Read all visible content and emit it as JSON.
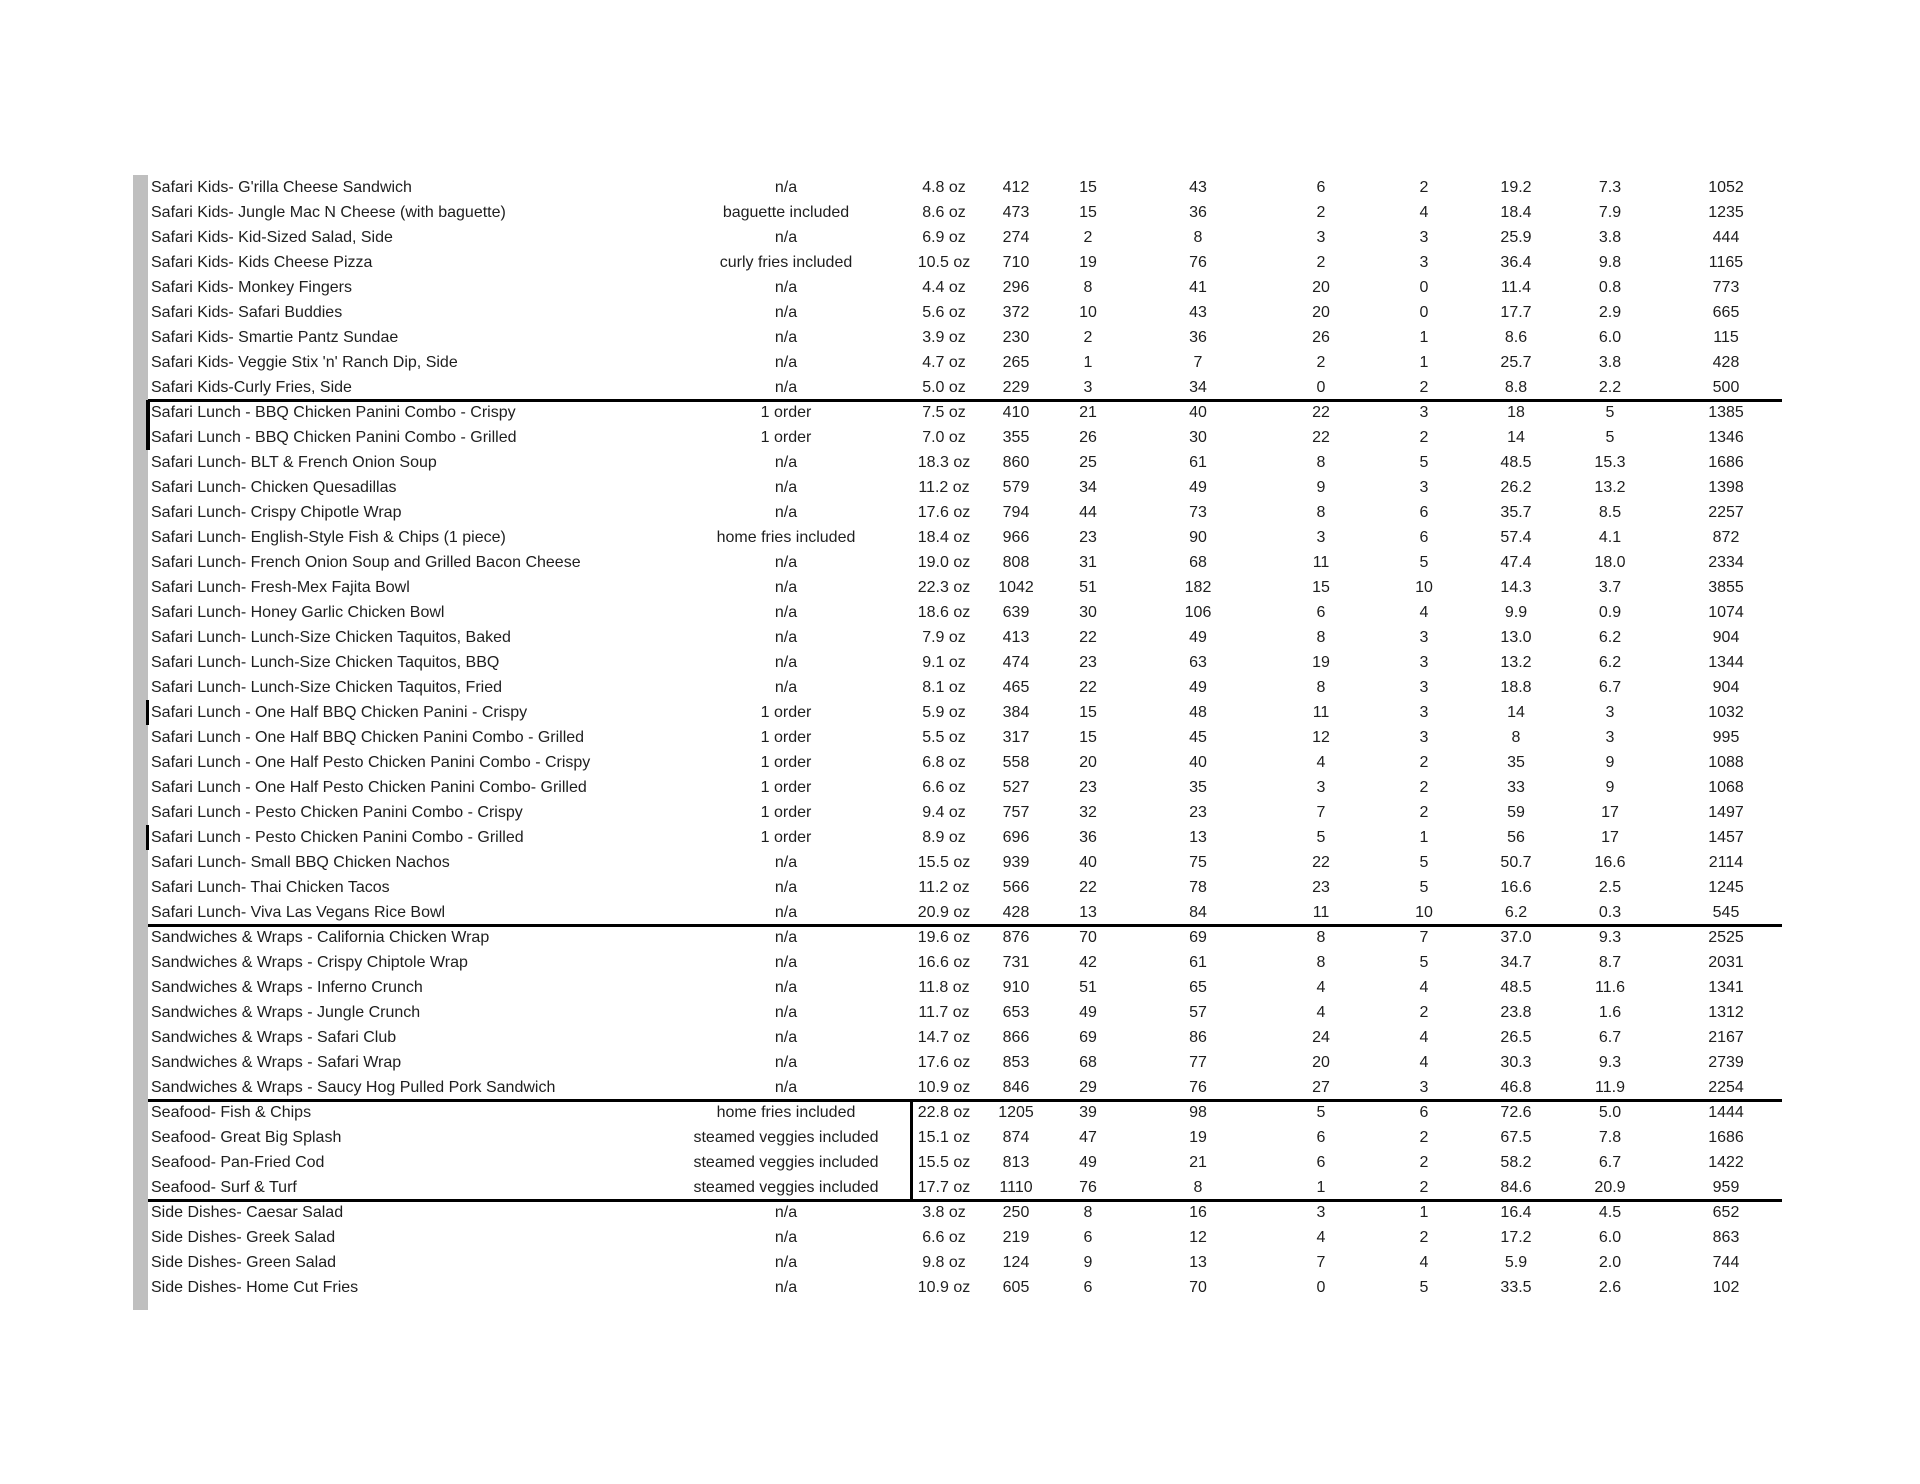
{
  "colors": {
    "background": "#ffffff",
    "text": "#1e1e1e",
    "grid_line": "#000000",
    "row_header_strip": "#bfbfbf"
  },
  "table": {
    "sections": [
      {
        "id": "safari-kids",
        "rows": [
          {
            "name": "Safari Kids- G'rilla Cheese Sandwich",
            "note": "n/a",
            "serving": "4.8 oz",
            "values": [
              "412",
              "15",
              "43",
              "6",
              "2",
              "19.2",
              "7.3",
              "1052"
            ]
          },
          {
            "name": "Safari Kids- Jungle Mac N Cheese (with baguette)",
            "note": "baguette included",
            "serving": "8.6 oz",
            "values": [
              "473",
              "15",
              "36",
              "2",
              "4",
              "18.4",
              "7.9",
              "1235"
            ]
          },
          {
            "name": "Safari Kids- Kid-Sized Salad, Side",
            "note": "n/a",
            "serving": "6.9 oz",
            "values": [
              "274",
              "2",
              "8",
              "3",
              "3",
              "25.9",
              "3.8",
              "444"
            ]
          },
          {
            "name": "Safari Kids- Kids Cheese Pizza",
            "note": "curly fries included",
            "serving": "10.5 oz",
            "values": [
              "710",
              "19",
              "76",
              "2",
              "3",
              "36.4",
              "9.8",
              "1165"
            ]
          },
          {
            "name": "Safari Kids- Monkey Fingers",
            "note": "n/a",
            "serving": "4.4 oz",
            "values": [
              "296",
              "8",
              "41",
              "20",
              "0",
              "11.4",
              "0.8",
              "773"
            ]
          },
          {
            "name": "Safari Kids- Safari Buddies",
            "note": "n/a",
            "serving": "5.6 oz",
            "values": [
              "372",
              "10",
              "43",
              "20",
              "0",
              "17.7",
              "2.9",
              "665"
            ]
          },
          {
            "name": "Safari Kids- Smartie Pantz Sundae",
            "note": "n/a",
            "serving": "3.9 oz",
            "values": [
              "230",
              "2",
              "36",
              "26",
              "1",
              "8.6",
              "6.0",
              "115"
            ]
          },
          {
            "name": "Safari Kids- Veggie Stix 'n' Ranch Dip, Side",
            "note": "n/a",
            "serving": "4.7 oz",
            "values": [
              "265",
              "1",
              "7",
              "2",
              "1",
              "25.7",
              "3.8",
              "428"
            ]
          },
          {
            "name": "Safari Kids-Curly Fries, Side",
            "note": "n/a",
            "serving": "5.0 oz",
            "values": [
              "229",
              "3",
              "34",
              "0",
              "2",
              "8.8",
              "2.2",
              "500"
            ]
          }
        ]
      },
      {
        "id": "safari-lunch",
        "rows": [
          {
            "name": "Safari Lunch - BBQ Chicken Panini Combo - Crispy",
            "note": "1 order",
            "serving": "7.5 oz",
            "values": [
              "410",
              "21",
              "40",
              "22",
              "3",
              "18",
              "5",
              "1385"
            ]
          },
          {
            "name": "Safari Lunch - BBQ Chicken Panini Combo - Grilled",
            "note": "1 order",
            "serving": "7.0 oz",
            "values": [
              "355",
              "26",
              "30",
              "22",
              "2",
              "14",
              "5",
              "1346"
            ]
          },
          {
            "name": "Safari Lunch- BLT & French Onion Soup",
            "note": "n/a",
            "serving": "18.3 oz",
            "values": [
              "860",
              "25",
              "61",
              "8",
              "5",
              "48.5",
              "15.3",
              "1686"
            ]
          },
          {
            "name": "Safari Lunch- Chicken Quesadillas",
            "note": "n/a",
            "serving": "11.2 oz",
            "values": [
              "579",
              "34",
              "49",
              "9",
              "3",
              "26.2",
              "13.2",
              "1398"
            ]
          },
          {
            "name": "Safari Lunch- Crispy Chipotle Wrap",
            "note": "n/a",
            "serving": "17.6 oz",
            "values": [
              "794",
              "44",
              "73",
              "8",
              "6",
              "35.7",
              "8.5",
              "2257"
            ]
          },
          {
            "name": "Safari Lunch- English-Style Fish & Chips (1 piece)",
            "note": "home fries included",
            "serving": "18.4 oz",
            "values": [
              "966",
              "23",
              "90",
              "3",
              "6",
              "57.4",
              "4.1",
              "872"
            ]
          },
          {
            "name": "Safari Lunch- French Onion Soup and Grilled Bacon Cheese",
            "note": "n/a",
            "serving": "19.0 oz",
            "values": [
              "808",
              "31",
              "68",
              "11",
              "5",
              "47.4",
              "18.0",
              "2334"
            ]
          },
          {
            "name": "Safari Lunch- Fresh-Mex Fajita Bowl",
            "note": "n/a",
            "serving": "22.3 oz",
            "values": [
              "1042",
              "51",
              "182",
              "15",
              "10",
              "14.3",
              "3.7",
              "3855"
            ]
          },
          {
            "name": "Safari Lunch- Honey Garlic Chicken Bowl",
            "note": "n/a",
            "serving": "18.6 oz",
            "values": [
              "639",
              "30",
              "106",
              "6",
              "4",
              "9.9",
              "0.9",
              "1074"
            ]
          },
          {
            "name": "Safari Lunch- Lunch-Size Chicken Taquitos, Baked",
            "note": "n/a",
            "serving": "7.9 oz",
            "values": [
              "413",
              "22",
              "49",
              "8",
              "3",
              "13.0",
              "6.2",
              "904"
            ]
          },
          {
            "name": "Safari Lunch- Lunch-Size Chicken Taquitos, BBQ",
            "note": "n/a",
            "serving": "9.1 oz",
            "values": [
              "474",
              "23",
              "63",
              "19",
              "3",
              "13.2",
              "6.2",
              "1344"
            ]
          },
          {
            "name": "Safari Lunch- Lunch-Size Chicken Taquitos, Fried",
            "note": "n/a",
            "serving": "8.1 oz",
            "values": [
              "465",
              "22",
              "49",
              "8",
              "3",
              "18.8",
              "6.7",
              "904"
            ]
          },
          {
            "name": "Safari Lunch - One Half BBQ Chicken Panini - Crispy",
            "note": "1 order",
            "serving": "5.9 oz",
            "values": [
              "384",
              "15",
              "48",
              "11",
              "3",
              "14",
              "3",
              "1032"
            ]
          },
          {
            "name": "Safari Lunch - One Half BBQ Chicken Panini Combo - Grilled",
            "note": "1 order",
            "serving": "5.5 oz",
            "values": [
              "317",
              "15",
              "45",
              "12",
              "3",
              "8",
              "3",
              "995"
            ]
          },
          {
            "name": "Safari Lunch -  One Half Pesto Chicken Panini Combo - Crispy",
            "note": "1 order",
            "serving": "6.8 oz",
            "values": [
              "558",
              "20",
              "40",
              "4",
              "2",
              "35",
              "9",
              "1088"
            ]
          },
          {
            "name": "Safari Lunch -  One Half Pesto Chicken Panini Combo- Grilled",
            "note": "1 order",
            "serving": "6.6 oz",
            "values": [
              "527",
              "23",
              "35",
              "3",
              "2",
              "33",
              "9",
              "1068"
            ]
          },
          {
            "name": "Safari Lunch - Pesto Chicken Panini Combo - Crispy",
            "note": "1 order",
            "serving": "9.4 oz",
            "values": [
              "757",
              "32",
              "23",
              "7",
              "2",
              "59",
              "17",
              "1497"
            ]
          },
          {
            "name": "Safari Lunch - Pesto Chicken Panini Combo - Grilled",
            "note": "1 order",
            "serving": "8.9 oz",
            "values": [
              "696",
              "36",
              "13",
              "5",
              "1",
              "56",
              "17",
              "1457"
            ]
          },
          {
            "name": "Safari Lunch- Small BBQ Chicken Nachos",
            "note": "n/a",
            "serving": "15.5 oz",
            "values": [
              "939",
              "40",
              "75",
              "22",
              "5",
              "50.7",
              "16.6",
              "2114"
            ]
          },
          {
            "name": "Safari Lunch- Thai Chicken Tacos",
            "note": "n/a",
            "serving": "11.2 oz",
            "values": [
              "566",
              "22",
              "78",
              "23",
              "5",
              "16.6",
              "2.5",
              "1245"
            ]
          },
          {
            "name": "Safari Lunch- Viva Las Vegans Rice Bowl",
            "note": "n/a",
            "serving": "20.9 oz",
            "values": [
              "428",
              "13",
              "84",
              "11",
              "10",
              "6.2",
              "0.3",
              "545"
            ]
          }
        ]
      },
      {
        "id": "sandwiches-wraps",
        "rows": [
          {
            "name": "Sandwiches & Wraps - California Chicken Wrap",
            "note": "n/a",
            "serving": "19.6 oz",
            "values": [
              "876",
              "70",
              "69",
              "8",
              "7",
              "37.0",
              "9.3",
              "2525"
            ]
          },
          {
            "name": "Sandwiches & Wraps - Crispy Chiptole Wrap",
            "note": "n/a",
            "serving": "16.6 oz",
            "values": [
              "731",
              "42",
              "61",
              "8",
              "5",
              "34.7",
              "8.7",
              "2031"
            ]
          },
          {
            "name": "Sandwiches & Wraps - Inferno Crunch",
            "note": "n/a",
            "serving": "11.8 oz",
            "values": [
              "910",
              "51",
              "65",
              "4",
              "4",
              "48.5",
              "11.6",
              "1341"
            ]
          },
          {
            "name": "Sandwiches & Wraps - Jungle Crunch",
            "note": "n/a",
            "serving": "11.7 oz",
            "values": [
              "653",
              "49",
              "57",
              "4",
              "2",
              "23.8",
              "1.6",
              "1312"
            ]
          },
          {
            "name": "Sandwiches & Wraps - Safari Club",
            "note": "n/a",
            "serving": "14.7 oz",
            "values": [
              "866",
              "69",
              "86",
              "24",
              "4",
              "26.5",
              "6.7",
              "2167"
            ]
          },
          {
            "name": "Sandwiches & Wraps - Safari Wrap",
            "note": "n/a",
            "serving": "17.6 oz",
            "values": [
              "853",
              "68",
              "77",
              "20",
              "4",
              "30.3",
              "9.3",
              "2739"
            ]
          },
          {
            "name": "Sandwiches & Wraps - Saucy Hog Pulled Pork Sandwich",
            "note": "n/a",
            "serving": "10.9 oz",
            "values": [
              "846",
              "29",
              "76",
              "27",
              "3",
              "46.8",
              "11.9",
              "2254"
            ]
          }
        ]
      },
      {
        "id": "seafood",
        "rows": [
          {
            "name": "Seafood- Fish & Chips",
            "note": "home fries included",
            "serving": "22.8 oz",
            "values": [
              "1205",
              "39",
              "98",
              "5",
              "6",
              "72.6",
              "5.0",
              "1444"
            ]
          },
          {
            "name": "Seafood- Great Big Splash",
            "note": "steamed veggies included",
            "serving": "15.1 oz",
            "values": [
              "874",
              "47",
              "19",
              "6",
              "2",
              "67.5",
              "7.8",
              "1686"
            ]
          },
          {
            "name": "Seafood- Pan-Fried Cod",
            "note": "steamed veggies included",
            "serving": "15.5 oz",
            "values": [
              "813",
              "49",
              "21",
              "6",
              "2",
              "58.2",
              "6.7",
              "1422"
            ]
          },
          {
            "name": "Seafood- Surf & Turf",
            "note": "steamed veggies included",
            "serving": "17.7 oz",
            "values": [
              "1110",
              "76",
              "8",
              "1",
              "2",
              "84.6",
              "20.9",
              "959"
            ]
          }
        ]
      },
      {
        "id": "side-dishes",
        "rows": [
          {
            "name": "Side Dishes- Caesar Salad",
            "note": "n/a",
            "serving": "3.8 oz",
            "values": [
              "250",
              "8",
              "16",
              "3",
              "1",
              "16.4",
              "4.5",
              "652"
            ]
          },
          {
            "name": "Side Dishes- Greek Salad",
            "note": "n/a",
            "serving": "6.6 oz",
            "values": [
              "219",
              "6",
              "12",
              "4",
              "2",
              "17.2",
              "6.0",
              "863"
            ]
          },
          {
            "name": "Side Dishes- Green Salad",
            "note": "n/a",
            "serving": "9.8 oz",
            "values": [
              "124",
              "9",
              "13",
              "7",
              "4",
              "5.9",
              "2.0",
              "744"
            ]
          },
          {
            "name": "Side Dishes- Home Cut Fries",
            "note": "n/a",
            "serving": "10.9 oz",
            "values": [
              "605",
              "6",
              "70",
              "0",
              "5",
              "33.5",
              "2.6",
              "102"
            ]
          }
        ]
      }
    ]
  }
}
